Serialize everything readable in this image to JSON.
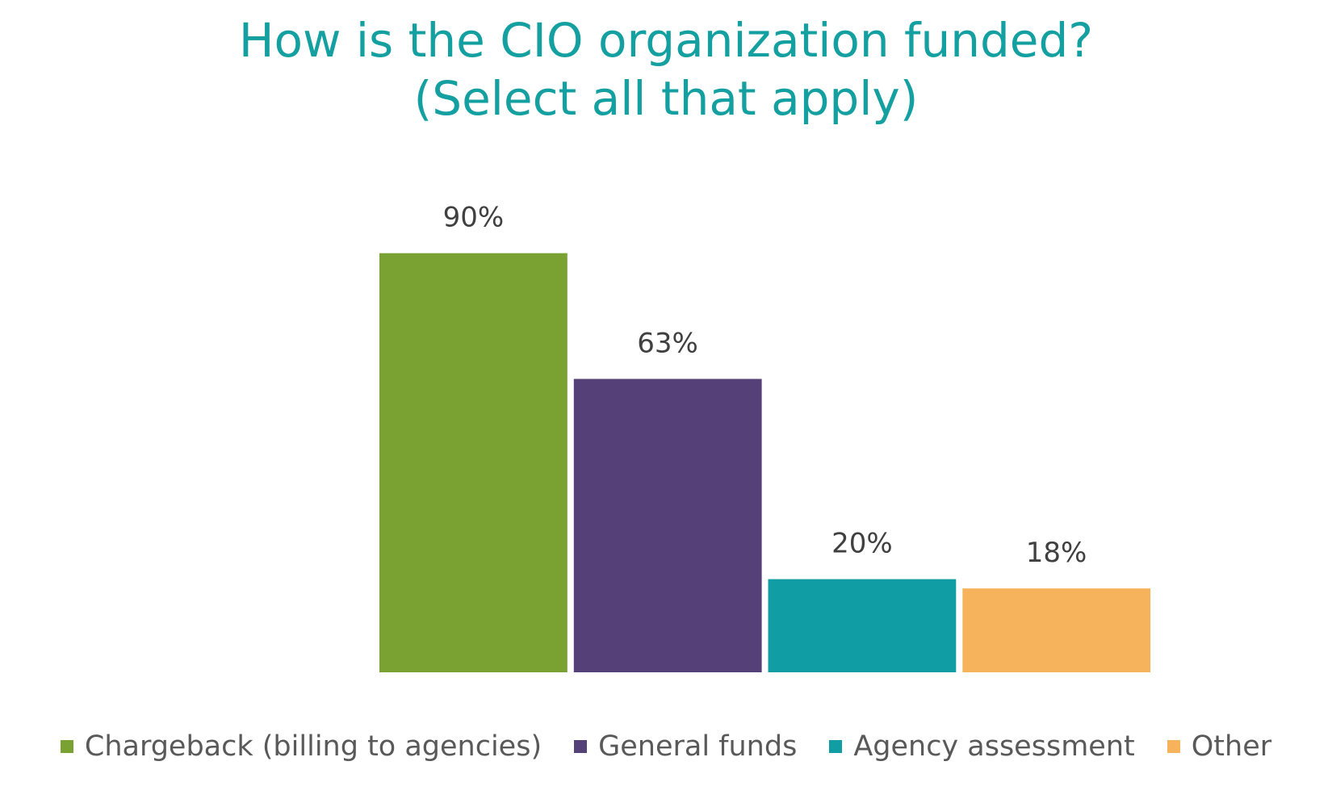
{
  "title": {
    "line1": "How is the CIO organization funded?",
    "line2": "(Select all that apply)"
  },
  "chart_data": {
    "type": "bar",
    "title": "How is the CIO organization funded? (Select all that apply)",
    "categories": [
      "Chargeback (billing to agencies)",
      "General funds",
      "Agency assessment",
      "Other"
    ],
    "values": [
      90,
      63,
      20,
      18
    ],
    "value_labels": [
      "90%",
      "63%",
      "20%",
      "18%"
    ],
    "colors": [
      "#7aa232",
      "#554077",
      "#109ea4",
      "#f7b35b"
    ],
    "unit": "%",
    "ylim": [
      0,
      100
    ],
    "grid": false,
    "legend_position": "bottom",
    "xlabel": "",
    "ylabel": ""
  },
  "colors": {
    "title": "#14a0a0",
    "data_label": "#404040",
    "legend_text": "#595959"
  }
}
